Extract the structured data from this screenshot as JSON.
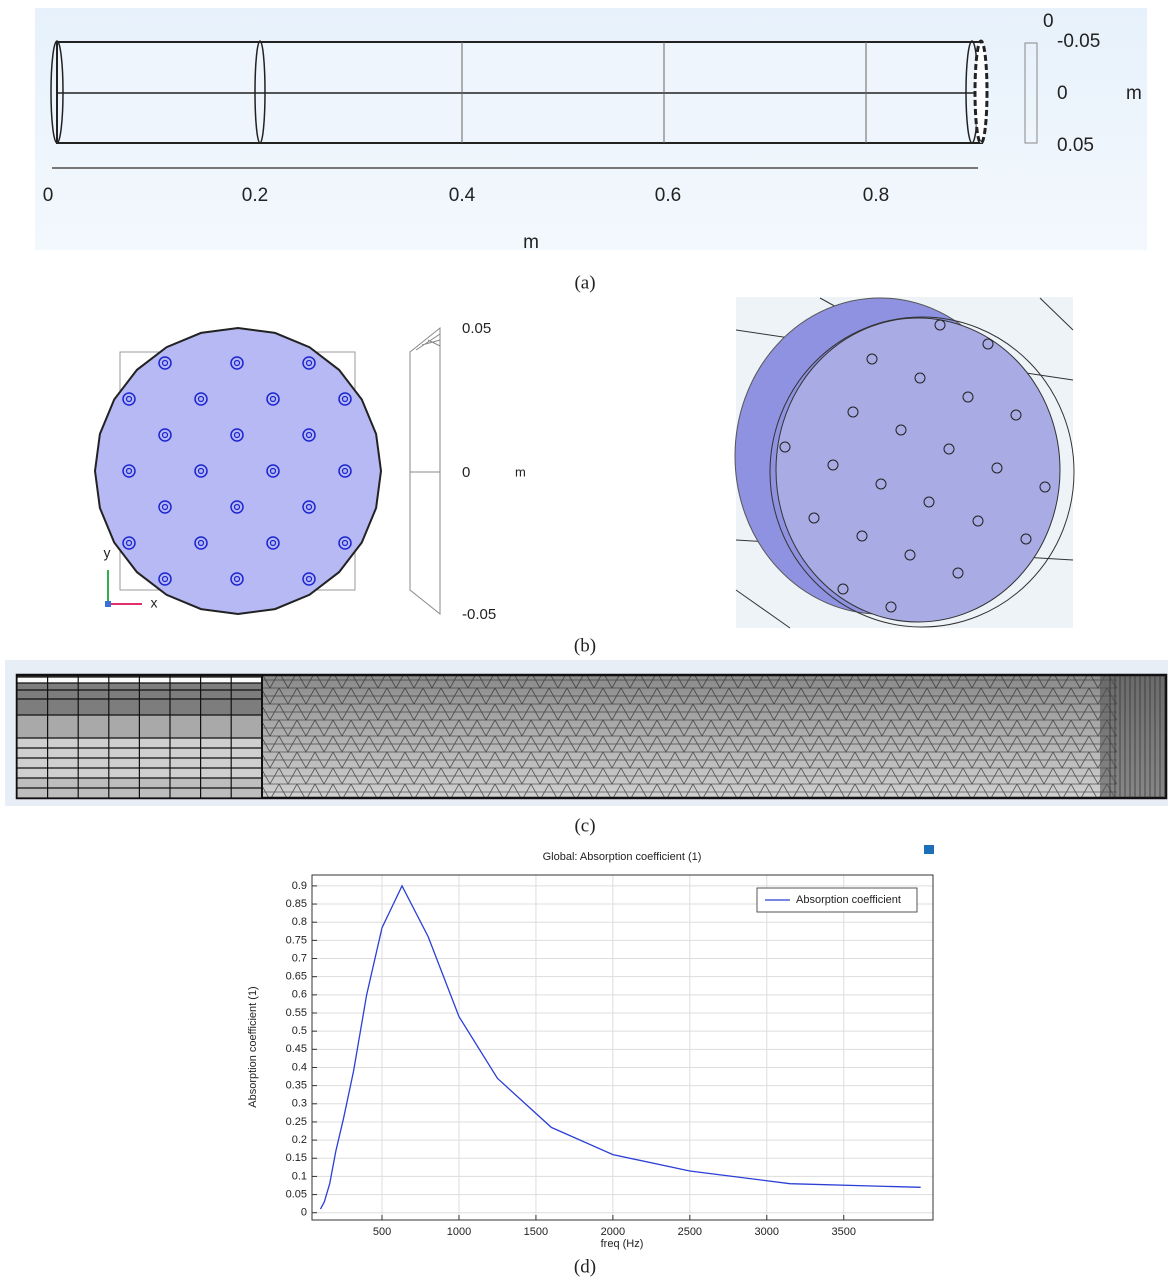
{
  "captions": [
    "(a)",
    "(b)",
    "(c)",
    "(d)"
  ],
  "panel_a": {
    "x_ticks": [
      0,
      0.2,
      0.4,
      0.6,
      0.8
    ],
    "x_unit": "m",
    "side_ticks": [
      0,
      -0.05,
      0,
      0.05
    ],
    "side_unit": "m"
  },
  "panel_b": {
    "scale_ticks": [
      0.05,
      0,
      -0.05
    ],
    "scale_unit": "m",
    "axis_labels": [
      "y",
      "x"
    ]
  },
  "chart_data": {
    "type": "line",
    "title": "Global: Absorption coefficient (1)",
    "x_label": "freq (Hz)",
    "y_label": "Absorption coefficient (1)",
    "x": [
      100,
      125,
      160,
      200,
      250,
      315,
      400,
      500,
      630,
      800,
      1000,
      1250,
      1600,
      2000,
      2500,
      3150,
      4000
    ],
    "series": [
      {
        "name": "Absorption coefficient",
        "color": "#2b3fd6",
        "values": [
          0.01,
          0.03,
          0.08,
          0.17,
          0.26,
          0.39,
          0.6,
          0.785,
          0.9,
          0.76,
          0.54,
          0.37,
          0.235,
          0.16,
          0.115,
          0.08,
          0.07
        ]
      }
    ],
    "xlim": [
      45,
      4080
    ],
    "ylim": [
      -0.02,
      0.93
    ],
    "xticks": [
      500,
      1000,
      1500,
      2000,
      2500,
      3000,
      3500
    ],
    "yticks": [
      0,
      0.05,
      0.1,
      0.15,
      0.2,
      0.25,
      0.3,
      0.35,
      0.4,
      0.45,
      0.5,
      0.55,
      0.6,
      0.65,
      0.7,
      0.75,
      0.8,
      0.85,
      0.9
    ],
    "grid": true,
    "legend": "top-right"
  }
}
